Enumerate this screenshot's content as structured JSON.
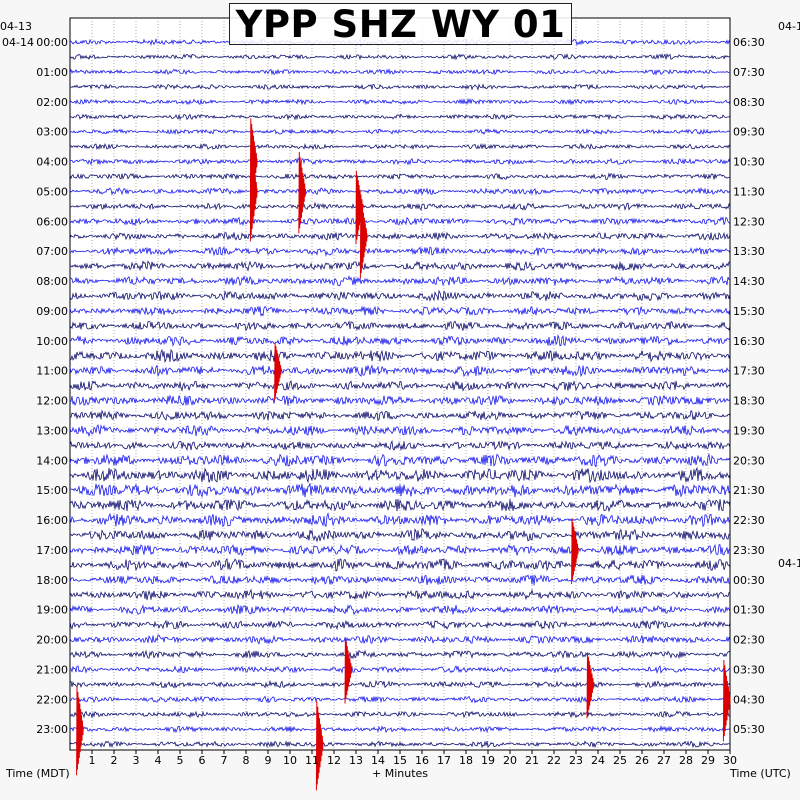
{
  "chart_data": {
    "type": "line",
    "title": "YPP SHZ WY 01",
    "xlabel": "+ Minutes",
    "left_axis_label": "Time (MDT)",
    "right_axis_label": "Time (UTC)",
    "left_date_labels": [
      "04-13",
      "04-14"
    ],
    "right_date_labels": [
      "04-1",
      "04-1"
    ],
    "x_ticks": [
      1,
      2,
      3,
      4,
      5,
      6,
      7,
      8,
      9,
      10,
      11,
      12,
      13,
      14,
      15,
      16,
      17,
      18,
      19,
      20,
      21,
      22,
      23,
      24,
      25,
      26,
      27,
      28,
      29,
      30
    ],
    "xlim": [
      0,
      30
    ],
    "left_hour_labels": [
      "00:00",
      "01:00",
      "02:00",
      "03:00",
      "04:00",
      "05:00",
      "06:00",
      "07:00",
      "08:00",
      "09:00",
      "10:00",
      "11:00",
      "12:00",
      "13:00",
      "14:00",
      "15:00",
      "16:00",
      "17:00",
      "18:00",
      "19:00",
      "20:00",
      "21:00",
      "22:00",
      "23:00"
    ],
    "right_hour_labels": [
      "06:30",
      "07:30",
      "08:30",
      "09:30",
      "10:30",
      "11:30",
      "12:30",
      "13:30",
      "14:30",
      "15:30",
      "16:30",
      "17:30",
      "18:30",
      "19:30",
      "20:30",
      "21:30",
      "22:30",
      "23:30",
      "00:30",
      "01:30",
      "02:30",
      "03:30",
      "04:30",
      "05:30"
    ],
    "line_minutes": 30,
    "lines_count": 48,
    "trace_colors": [
      "#1a1aee",
      "#101070"
    ],
    "event_color": "#dd0000",
    "row_amplitude_scale": [
      0.35,
      0.3,
      0.3,
      0.3,
      0.3,
      0.3,
      0.3,
      0.3,
      0.35,
      0.35,
      0.4,
      0.4,
      0.45,
      0.45,
      0.5,
      0.55,
      0.55,
      0.6,
      0.55,
      0.55,
      0.6,
      0.7,
      0.65,
      0.6,
      0.65,
      0.6,
      0.65,
      0.55,
      0.75,
      0.85,
      0.85,
      0.75,
      0.75,
      0.7,
      0.65,
      0.7,
      0.6,
      0.6,
      0.55,
      0.5,
      0.5,
      0.45,
      0.4,
      0.4,
      0.35,
      0.35,
      0.35,
      0.35
    ],
    "events": [
      {
        "line": 8,
        "minute": 8.2,
        "strength": 0.9
      },
      {
        "line": 10,
        "minute": 8.2,
        "strength": 1.0
      },
      {
        "line": 10,
        "minute": 10.4,
        "strength": 0.8
      },
      {
        "line": 11,
        "minute": 13.0,
        "strength": 0.7
      },
      {
        "line": 13,
        "minute": 13.2,
        "strength": 0.8
      },
      {
        "line": 22,
        "minute": 9.3,
        "strength": 0.5
      },
      {
        "line": 34,
        "minute": 22.8,
        "strength": 0.6
      },
      {
        "line": 42,
        "minute": 12.5,
        "strength": 0.6
      },
      {
        "line": 43,
        "minute": 23.5,
        "strength": 0.6
      },
      {
        "line": 44,
        "minute": 29.7,
        "strength": 0.8
      },
      {
        "line": 46,
        "minute": 0.3,
        "strength": 0.9
      },
      {
        "line": 47,
        "minute": 11.2,
        "strength": 0.9
      }
    ],
    "grid": true
  }
}
